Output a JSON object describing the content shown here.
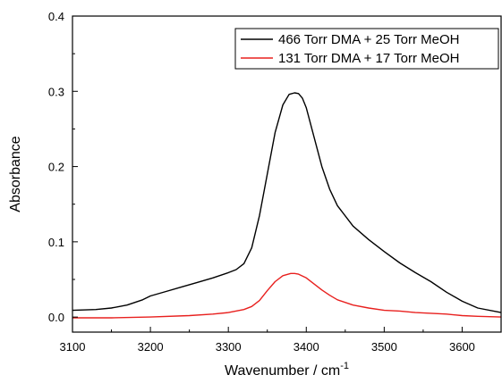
{
  "chart_data": {
    "type": "line",
    "title": "",
    "xlabel": "Wavenumber / cm",
    "xlabel_superscript": "-1",
    "ylabel": "Absorbance",
    "xlim": [
      3100,
      3650
    ],
    "ylim": [
      -0.02,
      0.4
    ],
    "xticks": [
      3100,
      3200,
      3300,
      3400,
      3500,
      3600
    ],
    "xtick_labels": [
      "3100",
      "3200",
      "3300",
      "3400",
      "3500",
      "3600"
    ],
    "yticks": [
      0.0,
      0.1,
      0.2,
      0.3,
      0.4
    ],
    "ytick_labels": [
      "0.0",
      "0.1",
      "0.2",
      "0.3",
      "0.4"
    ],
    "grid": false,
    "legend_position": "top-right",
    "series": [
      {
        "name": "466 Torr DMA + 25 Torr MeOH",
        "color": "#000000",
        "x": [
          3100,
          3130,
          3150,
          3170,
          3190,
          3200,
          3220,
          3240,
          3260,
          3280,
          3300,
          3310,
          3320,
          3330,
          3340,
          3350,
          3360,
          3370,
          3378,
          3385,
          3390,
          3395,
          3400,
          3410,
          3420,
          3430,
          3440,
          3460,
          3480,
          3500,
          3520,
          3540,
          3560,
          3580,
          3600,
          3620,
          3650
        ],
        "y": [
          0.009,
          0.01,
          0.012,
          0.016,
          0.023,
          0.028,
          0.034,
          0.04,
          0.046,
          0.052,
          0.059,
          0.063,
          0.071,
          0.092,
          0.135,
          0.19,
          0.245,
          0.282,
          0.296,
          0.298,
          0.297,
          0.291,
          0.278,
          0.239,
          0.2,
          0.17,
          0.148,
          0.121,
          0.103,
          0.087,
          0.072,
          0.059,
          0.047,
          0.033,
          0.021,
          0.012,
          0.006
        ]
      },
      {
        "name": "131 Torr DMA + 17 Torr MeOH",
        "color": "#e8201e",
        "x": [
          3100,
          3150,
          3200,
          3250,
          3280,
          3300,
          3320,
          3330,
          3340,
          3350,
          3360,
          3370,
          3380,
          3385,
          3390,
          3400,
          3410,
          3420,
          3430,
          3440,
          3460,
          3480,
          3500,
          3520,
          3540,
          3560,
          3580,
          3600,
          3620,
          3650
        ],
        "y": [
          -0.001,
          -0.001,
          0.0,
          0.002,
          0.004,
          0.006,
          0.01,
          0.014,
          0.022,
          0.035,
          0.047,
          0.055,
          0.058,
          0.058,
          0.057,
          0.052,
          0.044,
          0.036,
          0.029,
          0.023,
          0.016,
          0.012,
          0.009,
          0.008,
          0.006,
          0.005,
          0.004,
          0.002,
          0.001,
          0.0
        ]
      }
    ]
  }
}
